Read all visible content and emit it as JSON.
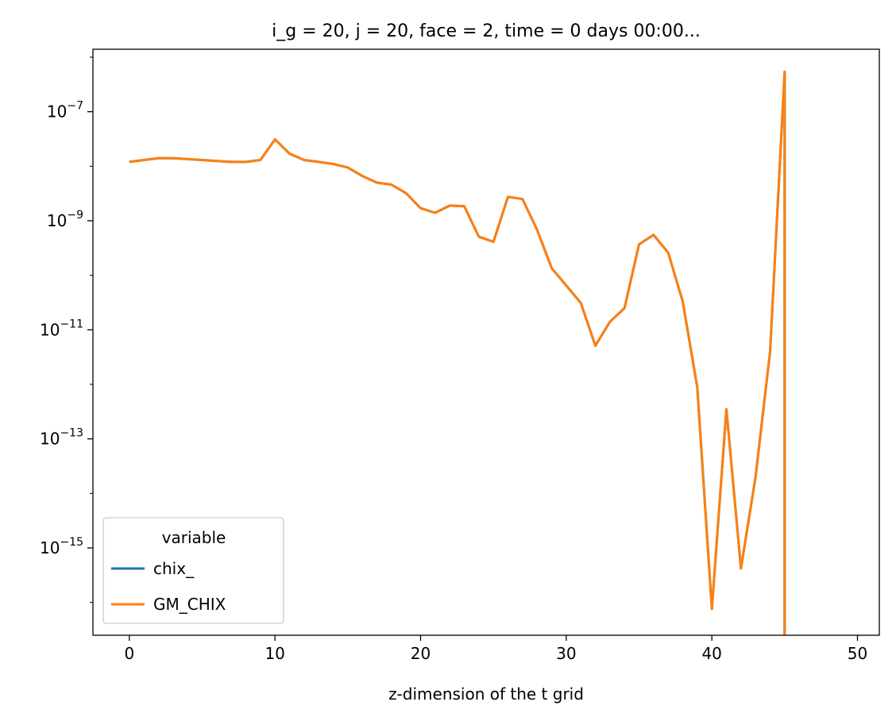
{
  "chart_data": {
    "type": "line",
    "title": "i_g = 20, j = 20, face = 2, time = 0 days 00:00...",
    "xlabel": "z-dimension of the t grid",
    "ylabel": "",
    "yscale": "log",
    "xlim": [
      -2.5,
      51.5
    ],
    "ylim": [
      2.5e-17,
      1.4e-06
    ],
    "grid": false,
    "x_ticks": [
      "0",
      "10",
      "20",
      "30",
      "40",
      "50"
    ],
    "y_ticks": [
      {
        "base": "10",
        "exp": "−7",
        "value": 1e-07
      },
      {
        "base": "10",
        "exp": "−9",
        "value": 1e-09
      },
      {
        "base": "10",
        "exp": "−11",
        "value": 1e-11
      },
      {
        "base": "10",
        "exp": "−13",
        "value": 1e-13
      },
      {
        "base": "10",
        "exp": "−15",
        "value": 1e-15
      }
    ],
    "legend": {
      "title": "variable",
      "placement": "lower-left"
    },
    "x": [
      0,
      1,
      2,
      3,
      4,
      5,
      6,
      7,
      8,
      9,
      10,
      11,
      12,
      13,
      14,
      15,
      16,
      17,
      18,
      19,
      20,
      21,
      22,
      23,
      24,
      25,
      26,
      27,
      28,
      29,
      30,
      31,
      32,
      33,
      34,
      35,
      36,
      37,
      38,
      39,
      40,
      41,
      42,
      43,
      44,
      45,
      45
    ],
    "series": [
      {
        "name": "chix_",
        "color": "#1f77b4",
        "values": [
          1.2e-08,
          1.3e-08,
          1.4e-08,
          1.4e-08,
          1.35e-08,
          1.3e-08,
          1.25e-08,
          1.2e-08,
          1.2e-08,
          1.3e-08,
          3.1e-08,
          1.7e-08,
          1.3e-08,
          1.2e-08,
          1.1e-08,
          9.5e-09,
          6.6e-09,
          5e-09,
          4.6e-09,
          3.2e-09,
          1.7e-09,
          1.4e-09,
          1.9e-09,
          1.85e-09,
          5.1e-10,
          4.1e-10,
          2.75e-09,
          2.5e-09,
          6.8e-10,
          1.35e-10,
          6.5e-11,
          3.1e-11,
          5.1e-12,
          1.4e-11,
          2.5e-11,
          3.7e-10,
          5.5e-10,
          2.6e-10,
          3.3e-11,
          8.9e-13,
          7.6e-17,
          3.5e-13,
          4.2e-16,
          2e-14,
          4e-12,
          5.4e-07,
          0
        ]
      },
      {
        "name": "GM_CHIX",
        "color": "#ff7f0e",
        "values": [
          1.2e-08,
          1.3e-08,
          1.4e-08,
          1.4e-08,
          1.35e-08,
          1.3e-08,
          1.25e-08,
          1.2e-08,
          1.2e-08,
          1.3e-08,
          3.1e-08,
          1.7e-08,
          1.3e-08,
          1.2e-08,
          1.1e-08,
          9.5e-09,
          6.6e-09,
          5e-09,
          4.6e-09,
          3.2e-09,
          1.7e-09,
          1.4e-09,
          1.9e-09,
          1.85e-09,
          5.1e-10,
          4.1e-10,
          2.75e-09,
          2.5e-09,
          6.8e-10,
          1.35e-10,
          6.5e-11,
          3.1e-11,
          5.1e-12,
          1.4e-11,
          2.5e-11,
          3.7e-10,
          5.5e-10,
          2.6e-10,
          3.3e-11,
          8.9e-13,
          7.6e-17,
          3.5e-13,
          4.2e-16,
          2e-14,
          4e-12,
          5.4e-07,
          0
        ]
      }
    ]
  }
}
